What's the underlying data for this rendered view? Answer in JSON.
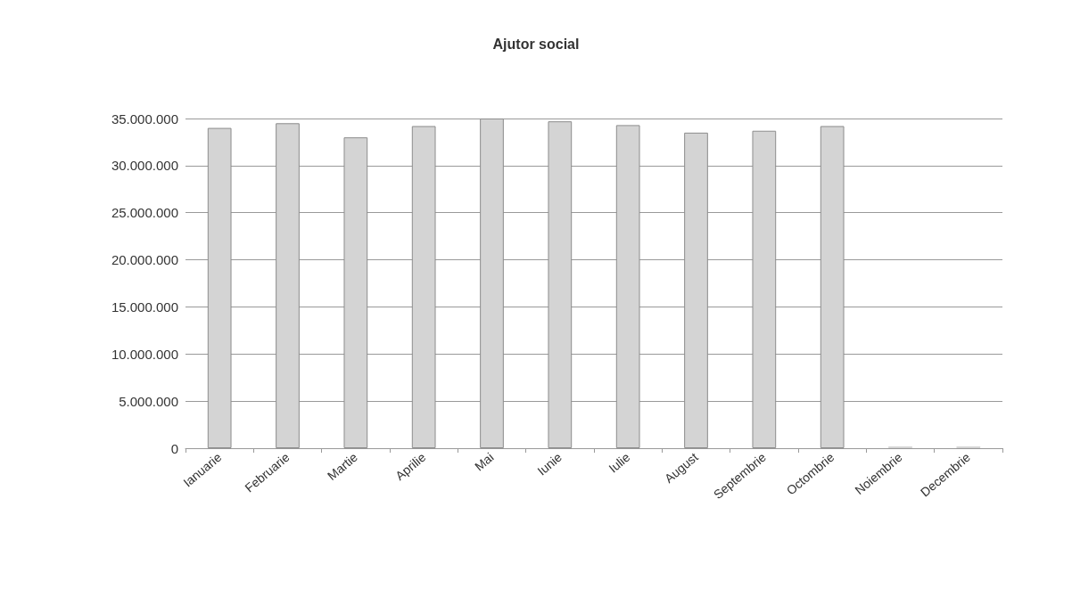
{
  "chart_data": {
    "type": "bar",
    "title": "Ajutor social",
    "categories": [
      "Ianuarie",
      "Februarie",
      "Martie",
      "Aprilie",
      "Mai",
      "Iunie",
      "Iulie",
      "August",
      "Septembrie",
      "Octombrie",
      "Noiembrie",
      "Decembrie"
    ],
    "values": [
      34000000,
      34500000,
      33000000,
      34200000,
      35000000,
      34700000,
      34300000,
      33500000,
      33700000,
      34200000,
      0,
      0
    ],
    "color": "#d4d4d4",
    "ylim": [
      0,
      35000000
    ],
    "yticks": [
      {
        "value": 0,
        "label": "0"
      },
      {
        "value": 5000000,
        "label": "5.000.000"
      },
      {
        "value": 10000000,
        "label": "10.000.000"
      },
      {
        "value": 15000000,
        "label": "15.000.000"
      },
      {
        "value": 20000000,
        "label": "20.000.000"
      },
      {
        "value": 25000000,
        "label": "25.000.000"
      },
      {
        "value": 30000000,
        "label": "30.000.000"
      },
      {
        "value": 35000000,
        "label": "35.000.000"
      }
    ],
    "grid": "y"
  }
}
